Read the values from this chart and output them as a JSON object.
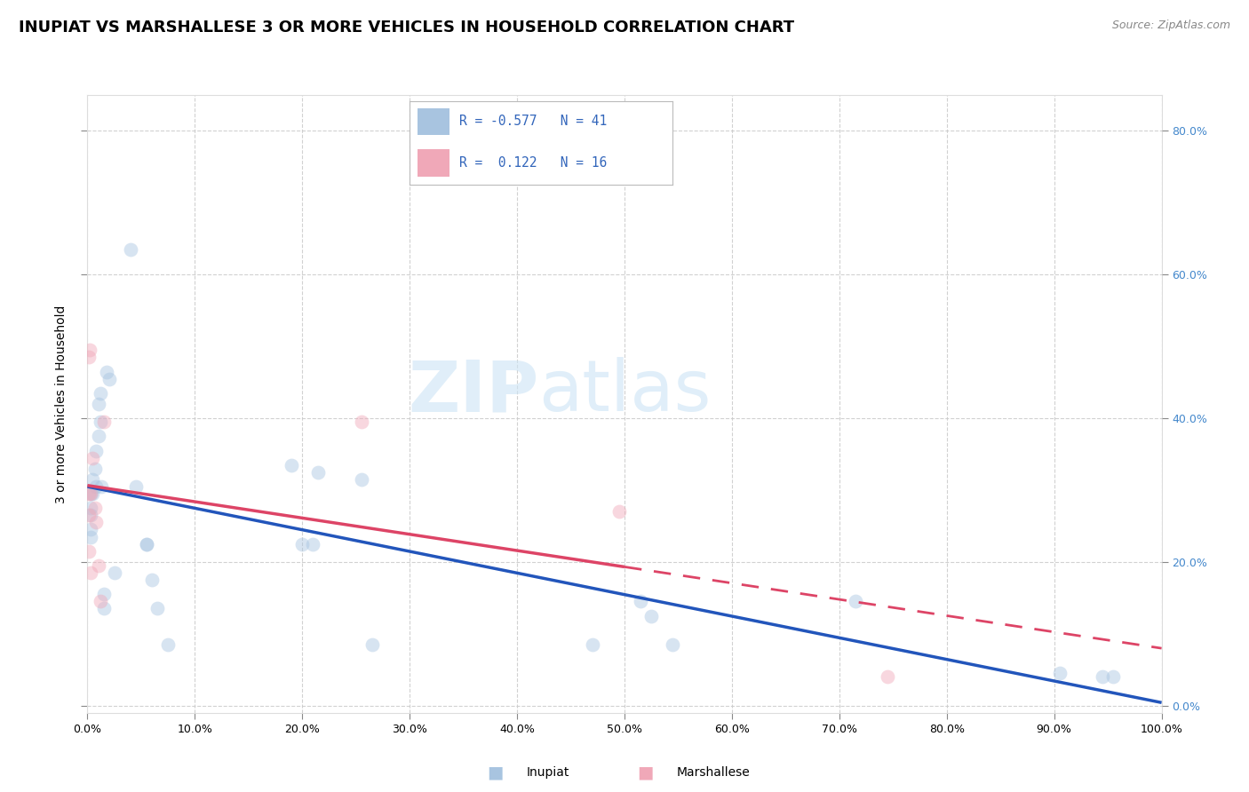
{
  "title": "INUPIAT VS MARSHALLESE 3 OR MORE VEHICLES IN HOUSEHOLD CORRELATION CHART",
  "source": "Source: ZipAtlas.com",
  "ylabel": "3 or more Vehicles in Household",
  "legend_label1": "Inupiat",
  "legend_label2": "Marshallese",
  "watermark_zip": "ZIP",
  "watermark_atlas": "atlas",
  "r_inupiat": -0.577,
  "n_inupiat": 41,
  "r_marshallese": 0.122,
  "n_marshallese": 16,
  "inupiat_color": "#a8c4e0",
  "marshallese_color": "#f0a8b8",
  "inupiat_line_color": "#2255bb",
  "marshallese_line_color": "#dd4466",
  "background_color": "#ffffff",
  "grid_color": "#cccccc",
  "right_axis_color": "#4488cc",
  "legend_text_color": "#3366bb",
  "title_fontsize": 13,
  "axis_label_fontsize": 10,
  "tick_fontsize": 9,
  "xlim": [
    0.0,
    1.0
  ],
  "ylim": [
    -0.01,
    0.85
  ],
  "yticks": [
    0.0,
    0.2,
    0.4,
    0.6,
    0.8
  ],
  "ytick_labels_right": [
    "0.0%",
    "20.0%",
    "40.0%",
    "60.0%",
    "80.0%"
  ],
  "xticks": [
    0.0,
    0.1,
    0.2,
    0.3,
    0.4,
    0.5,
    0.6,
    0.7,
    0.8,
    0.9,
    1.0
  ],
  "xtick_labels": [
    "0.0%",
    "10.0%",
    "20.0%",
    "30.0%",
    "40.0%",
    "50.0%",
    "60.0%",
    "70.0%",
    "80.0%",
    "90.0%",
    "100.0%"
  ],
  "inupiat_x": [
    0.003,
    0.003,
    0.003,
    0.003,
    0.003,
    0.005,
    0.005,
    0.007,
    0.008,
    0.008,
    0.01,
    0.01,
    0.012,
    0.012,
    0.013,
    0.015,
    0.015,
    0.018,
    0.02,
    0.025,
    0.04,
    0.045,
    0.055,
    0.055,
    0.06,
    0.065,
    0.075,
    0.19,
    0.2,
    0.21,
    0.215,
    0.255,
    0.265,
    0.47,
    0.515,
    0.525,
    0.545,
    0.715,
    0.905,
    0.945,
    0.955
  ],
  "inupiat_y": [
    0.295,
    0.275,
    0.265,
    0.245,
    0.235,
    0.315,
    0.295,
    0.33,
    0.305,
    0.355,
    0.375,
    0.42,
    0.435,
    0.395,
    0.305,
    0.155,
    0.135,
    0.465,
    0.455,
    0.185,
    0.635,
    0.305,
    0.225,
    0.225,
    0.175,
    0.135,
    0.085,
    0.335,
    0.225,
    0.225,
    0.325,
    0.315,
    0.085,
    0.085,
    0.145,
    0.125,
    0.085,
    0.145,
    0.045,
    0.04,
    0.04
  ],
  "marshallese_x": [
    0.001,
    0.001,
    0.001,
    0.001,
    0.002,
    0.003,
    0.003,
    0.005,
    0.007,
    0.008,
    0.01,
    0.012,
    0.015,
    0.255,
    0.495,
    0.745
  ],
  "marshallese_y": [
    0.485,
    0.295,
    0.265,
    0.215,
    0.495,
    0.295,
    0.185,
    0.345,
    0.275,
    0.255,
    0.195,
    0.145,
    0.395,
    0.395,
    0.27,
    0.04
  ],
  "marker_size": 130,
  "marker_alpha": 0.45,
  "marker_linewidth": 0.0
}
